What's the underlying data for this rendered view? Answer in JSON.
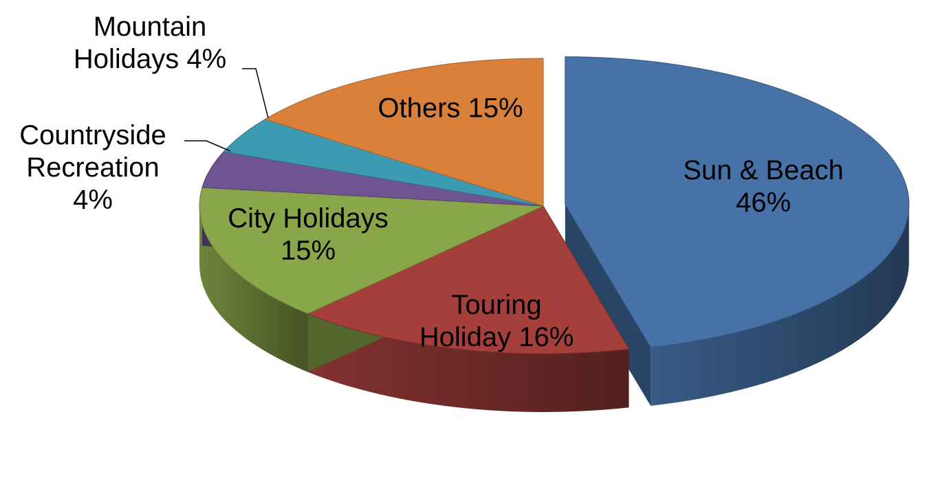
{
  "chart_data": {
    "type": "pie",
    "categories": [
      "Sun & Beach",
      "Touring Holiday",
      "City Holidays",
      "Countryside Recreation",
      "Mountain Holidays",
      "Others"
    ],
    "values": [
      46,
      16,
      15,
      4,
      4,
      15
    ],
    "value_labels": [
      "46%",
      "16%",
      "15%",
      "4%",
      "4%",
      "15%"
    ],
    "colors": [
      "#4672a8",
      "#a43f3c",
      "#8aa64a",
      "#6e5490",
      "#3d9ab3",
      "#d9813a"
    ],
    "exploded": [
      0
    ]
  }
}
